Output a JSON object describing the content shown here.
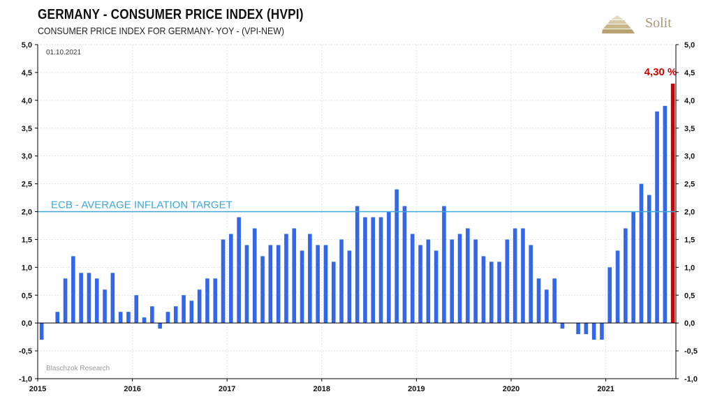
{
  "header": {
    "title": "GERMANY - CONSUMER PRICE INDEX (HVPI)",
    "subtitle": "CONSUMER PRICE INDEX FOR GERMANY- YOY - (VPI-NEW)",
    "logo_text": "Solit"
  },
  "chart_data": {
    "type": "bar",
    "date_label": "01.10.2021",
    "source": "Blaschzok Research",
    "ylim": [
      -1.0,
      5.0
    ],
    "y_ticks": [
      "5,0",
      "4,5",
      "4,0",
      "3,5",
      "3,0",
      "2,5",
      "2,0",
      "1,5",
      "1,0",
      "0,5",
      "0,0",
      "-0,5",
      "-1,0"
    ],
    "y_tick_values": [
      5.0,
      4.5,
      4.0,
      3.5,
      3.0,
      2.5,
      2.0,
      1.5,
      1.0,
      0.5,
      0.0,
      -0.5,
      -1.0
    ],
    "x_ticks": [
      "2015",
      "2016",
      "2017",
      "2018",
      "2019",
      "2020",
      "2021"
    ],
    "x_start": "2015-01",
    "target_line": {
      "value": 2.0,
      "label": "ECB - AVERAGE INFLATION TARGET",
      "color": "#3aa7d8"
    },
    "bar_color": "#3366e8",
    "highlight_color": "#cc0000",
    "highlight_label": "4,30 %",
    "values": [
      -0.3,
      0.0,
      0.2,
      0.8,
      1.2,
      0.9,
      0.9,
      0.8,
      0.6,
      0.9,
      0.2,
      0.2,
      0.5,
      0.1,
      0.3,
      -0.1,
      0.2,
      0.3,
      0.5,
      0.4,
      0.6,
      0.8,
      0.8,
      1.5,
      1.6,
      1.9,
      1.4,
      1.7,
      1.2,
      1.4,
      1.4,
      1.6,
      1.7,
      1.3,
      1.6,
      1.4,
      1.4,
      1.1,
      1.5,
      1.3,
      2.1,
      1.9,
      1.9,
      1.9,
      2.0,
      2.4,
      2.1,
      1.6,
      1.4,
      1.5,
      1.3,
      2.1,
      1.5,
      1.6,
      1.7,
      1.5,
      1.2,
      1.1,
      1.1,
      1.5,
      1.7,
      1.7,
      1.4,
      0.8,
      0.6,
      0.8,
      -0.1,
      0.0,
      -0.2,
      -0.2,
      -0.3,
      -0.3,
      1.0,
      1.3,
      1.7,
      2.0,
      2.5,
      2.3,
      3.8,
      3.9,
      4.3
    ]
  }
}
